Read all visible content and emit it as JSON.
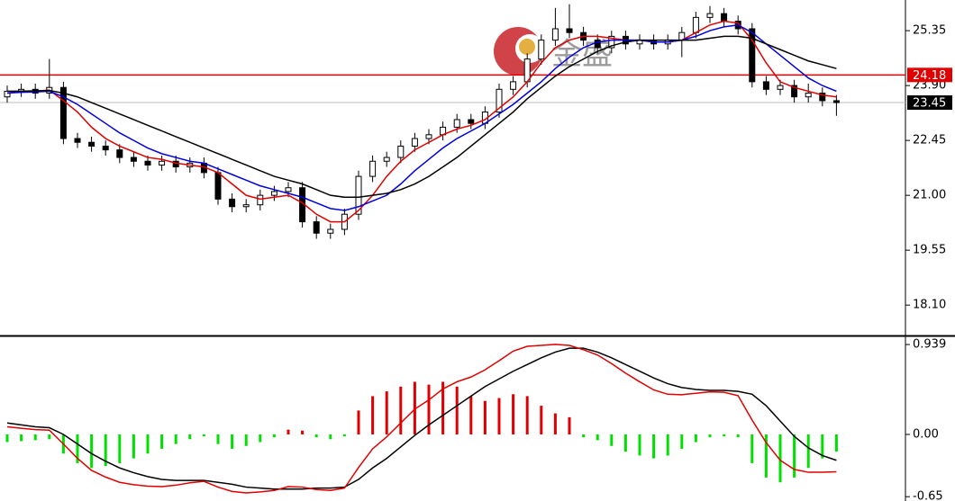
{
  "chart_data": [
    {
      "type": "candlestick",
      "watermark": "金盛",
      "open": [
        23.6,
        23.75,
        23.8,
        23.7,
        23.85,
        22.5,
        22.4,
        22.3,
        22.2,
        22.0,
        21.9,
        21.8,
        21.9,
        21.75,
        21.85,
        21.6,
        20.9,
        20.7,
        20.75,
        21.0,
        21.1,
        21.2,
        20.3,
        20.0,
        20.1,
        20.5,
        21.5,
        21.9,
        22.0,
        22.3,
        22.5,
        22.6,
        22.8,
        23.0,
        22.9,
        23.2,
        23.8,
        24.0,
        24.6,
        25.1,
        25.4,
        25.3,
        25.1,
        24.9,
        25.2,
        25.0,
        25.1,
        25.0,
        25.1,
        25.3,
        25.7,
        25.8,
        25.6,
        25.4,
        24.0,
        23.8,
        23.9,
        23.6,
        23.7,
        23.5
      ],
      "high": [
        23.9,
        23.95,
        23.95,
        24.6,
        24.0,
        22.65,
        22.55,
        22.45,
        22.35,
        22.15,
        22.05,
        22.05,
        22.05,
        22.0,
        22.0,
        21.75,
        21.05,
        20.9,
        21.15,
        21.25,
        21.35,
        21.35,
        20.45,
        20.25,
        20.65,
        21.65,
        22.05,
        22.15,
        22.45,
        22.65,
        22.75,
        22.95,
        23.15,
        23.15,
        23.35,
        23.95,
        24.15,
        24.75,
        25.25,
        25.95,
        26.05,
        25.45,
        25.25,
        25.35,
        25.35,
        25.25,
        25.25,
        25.25,
        25.45,
        25.85,
        26.0,
        25.95,
        25.75,
        25.55,
        24.15,
        24.05,
        24.05,
        23.95,
        23.85,
        23.65
      ],
      "low": [
        23.45,
        23.6,
        23.55,
        23.55,
        22.35,
        22.25,
        22.15,
        22.05,
        21.85,
        21.75,
        21.65,
        21.65,
        21.6,
        21.6,
        21.45,
        20.75,
        20.55,
        20.55,
        20.6,
        20.85,
        20.95,
        20.15,
        19.85,
        19.85,
        19.95,
        20.35,
        21.35,
        21.75,
        21.85,
        22.15,
        22.35,
        22.45,
        22.65,
        22.75,
        22.75,
        23.05,
        23.65,
        23.85,
        24.45,
        24.95,
        25.15,
        24.95,
        24.75,
        24.75,
        24.85,
        24.85,
        24.85,
        24.85,
        24.65,
        25.15,
        25.55,
        25.45,
        25.25,
        23.85,
        23.65,
        23.65,
        23.45,
        23.45,
        23.35,
        23.1
      ],
      "close": [
        23.75,
        23.8,
        23.7,
        23.85,
        22.5,
        22.4,
        22.3,
        22.2,
        22.0,
        21.9,
        21.8,
        21.9,
        21.75,
        21.85,
        21.6,
        20.9,
        20.7,
        20.75,
        21.0,
        21.1,
        21.2,
        20.3,
        20.0,
        20.1,
        20.5,
        21.5,
        21.9,
        22.0,
        22.3,
        22.5,
        22.6,
        22.8,
        23.0,
        22.9,
        23.2,
        23.8,
        24.0,
        24.6,
        25.1,
        25.4,
        25.3,
        25.1,
        24.9,
        25.2,
        25.0,
        25.1,
        25.0,
        25.1,
        25.3,
        25.7,
        25.8,
        25.6,
        25.4,
        24.0,
        23.8,
        23.9,
        23.6,
        23.7,
        23.5,
        23.45
      ],
      "series": [
        {
          "color": "#e00000",
          "values": [
            23.7,
            23.75,
            23.75,
            23.78,
            23.5,
            23.2,
            22.8,
            22.5,
            22.3,
            22.15,
            22.0,
            21.95,
            21.85,
            21.8,
            21.75,
            21.6,
            21.3,
            21.0,
            20.9,
            20.95,
            21.0,
            20.8,
            20.5,
            20.3,
            20.3,
            20.6,
            21.0,
            21.5,
            21.9,
            22.2,
            22.4,
            22.6,
            22.75,
            22.85,
            23.0,
            23.3,
            23.6,
            24.0,
            24.5,
            24.9,
            25.1,
            25.2,
            25.2,
            25.15,
            25.1,
            25.1,
            25.05,
            25.05,
            25.1,
            25.3,
            25.5,
            25.6,
            25.55,
            25.1,
            24.5,
            24.0,
            23.85,
            23.75,
            23.65,
            23.6
          ]
        },
        {
          "color": "#0000e0",
          "values": [
            23.7,
            23.72,
            23.73,
            23.75,
            23.6,
            23.4,
            23.15,
            22.9,
            22.65,
            22.45,
            22.25,
            22.1,
            22.0,
            21.9,
            21.85,
            21.7,
            21.55,
            21.4,
            21.25,
            21.15,
            21.05,
            20.95,
            20.8,
            20.65,
            20.6,
            20.7,
            20.85,
            21.0,
            21.3,
            21.65,
            21.95,
            22.25,
            22.5,
            22.7,
            22.9,
            23.15,
            23.4,
            23.7,
            24.0,
            24.35,
            24.65,
            24.9,
            25.05,
            25.1,
            25.1,
            25.1,
            25.05,
            25.05,
            25.1,
            25.2,
            25.35,
            25.45,
            25.5,
            25.3,
            25.0,
            24.7,
            24.4,
            24.1,
            23.9,
            23.75
          ]
        },
        {
          "color": "#000000",
          "values": [
            23.75,
            23.75,
            23.76,
            23.77,
            23.7,
            23.6,
            23.45,
            23.3,
            23.15,
            23.0,
            22.85,
            22.7,
            22.55,
            22.4,
            22.25,
            22.1,
            21.95,
            21.8,
            21.65,
            21.5,
            21.4,
            21.3,
            21.15,
            21.0,
            20.95,
            20.95,
            21.0,
            21.05,
            21.15,
            21.3,
            21.5,
            21.75,
            22.0,
            22.3,
            22.6,
            22.9,
            23.2,
            23.55,
            23.85,
            24.15,
            24.4,
            24.6,
            24.8,
            24.95,
            25.05,
            25.1,
            25.1,
            25.1,
            25.1,
            25.1,
            25.15,
            25.2,
            25.2,
            25.15,
            25.0,
            24.85,
            24.7,
            24.55,
            24.45,
            24.35
          ]
        }
      ],
      "levels": [
        {
          "value": 24.18,
          "color": "#e00000"
        },
        {
          "value": 23.45,
          "color": "#000000"
        }
      ],
      "ylim": [
        17.32,
        26.16
      ],
      "yticks": [
        25.35,
        {
          "value": 23.9,
          "label": "23.90"
        },
        22.45,
        {
          "value": 21.0,
          "label": "21.00"
        },
        19.55,
        {
          "value": 18.1,
          "label": "18.10"
        }
      ]
    },
    {
      "type": "macd",
      "up_color": "#e00000",
      "down_color": "#00e000",
      "values": [
        -0.08,
        -0.07,
        -0.06,
        -0.05,
        -0.2,
        -0.3,
        -0.35,
        -0.33,
        -0.3,
        -0.25,
        -0.2,
        -0.15,
        -0.1,
        -0.05,
        -0.02,
        -0.1,
        -0.15,
        -0.12,
        -0.08,
        -0.03,
        0.05,
        0.04,
        -0.03,
        -0.05,
        -0.02,
        0.25,
        0.4,
        0.45,
        0.5,
        0.55,
        0.52,
        0.55,
        0.5,
        0.4,
        0.35,
        0.38,
        0.42,
        0.4,
        0.3,
        0.22,
        0.18,
        -0.03,
        -0.06,
        -0.12,
        -0.18,
        -0.22,
        -0.25,
        -0.22,
        -0.15,
        -0.08,
        -0.03,
        -0.02,
        -0.03,
        -0.3,
        -0.45,
        -0.5,
        -0.45,
        -0.35,
        -0.25,
        -0.18
      ],
      "series": [
        {
          "color": "#000000",
          "values": [
            0.12,
            0.1,
            0.08,
            0.07,
            0.0,
            -0.1,
            -0.2,
            -0.28,
            -0.35,
            -0.4,
            -0.44,
            -0.47,
            -0.48,
            -0.48,
            -0.48,
            -0.5,
            -0.52,
            -0.55,
            -0.56,
            -0.57,
            -0.57,
            -0.57,
            -0.56,
            -0.56,
            -0.55,
            -0.47,
            -0.35,
            -0.25,
            -0.13,
            -0.01,
            0.1,
            0.2,
            0.3,
            0.4,
            0.5,
            0.58,
            0.66,
            0.73,
            0.8,
            0.86,
            0.9,
            0.9,
            0.86,
            0.8,
            0.73,
            0.66,
            0.59,
            0.53,
            0.49,
            0.47,
            0.46,
            0.46,
            0.45,
            0.42,
            0.3,
            0.14,
            -0.02,
            -0.14,
            -0.22,
            -0.27
          ]
        },
        {
          "color": "#e00000",
          "values": [
            0.08,
            0.065,
            0.05,
            0.045,
            -0.1,
            -0.25,
            -0.375,
            -0.445,
            -0.5,
            -0.525,
            -0.54,
            -0.545,
            -0.53,
            -0.505,
            -0.49,
            -0.55,
            -0.595,
            -0.61,
            -0.6,
            -0.585,
            -0.545,
            -0.55,
            -0.575,
            -0.585,
            -0.56,
            -0.345,
            -0.15,
            -0.025,
            0.12,
            0.265,
            0.36,
            0.475,
            0.55,
            0.6,
            0.675,
            0.77,
            0.87,
            0.92,
            0.93,
            0.94,
            0.93,
            0.885,
            0.83,
            0.74,
            0.64,
            0.55,
            0.465,
            0.42,
            0.415,
            0.43,
            0.445,
            0.44,
            0.405,
            0.15,
            -0.085,
            -0.27,
            -0.365,
            -0.395,
            -0.395,
            -0.39
          ]
        }
      ],
      "ylim": [
        -0.695,
        1.005
      ],
      "yticks": [
        0.939,
        {
          "value": 0,
          "label": "0.00"
        },
        -0.65
      ]
    }
  ]
}
